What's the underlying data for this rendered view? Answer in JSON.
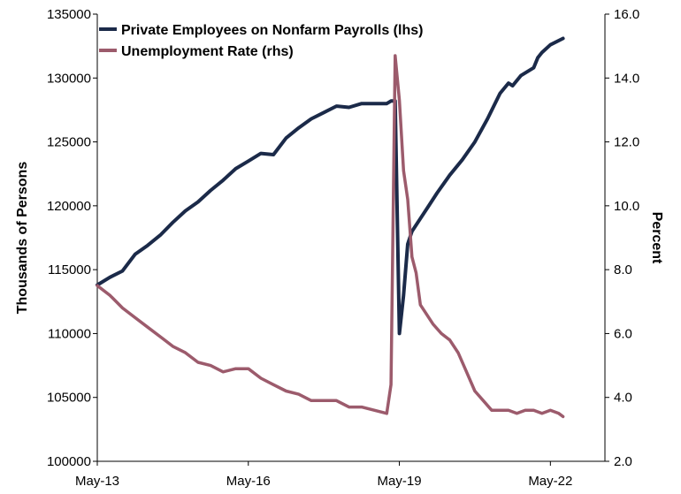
{
  "chart_data": {
    "type": "line",
    "x_tick_labels": [
      "May-13",
      "May-16",
      "May-19",
      "May-22"
    ],
    "y_left": {
      "label": "Thousands of Persons",
      "range": [
        100000,
        135000
      ],
      "ticks": [
        "100000",
        "105000",
        "110000",
        "115000",
        "120000",
        "125000",
        "130000",
        "135000"
      ]
    },
    "y_right": {
      "label": "Percent",
      "range": [
        2.0,
        16.0
      ],
      "ticks": [
        "2.0",
        "4.0",
        "6.0",
        "8.0",
        "10.0",
        "12.0",
        "14.0",
        "16.0"
      ]
    },
    "grid": false,
    "legend_position": "top-left",
    "x_range_months": [
      0,
      121
    ],
    "series": [
      {
        "name": "Private Employees on Nonfarm Payrolls (lhs)",
        "axis": "left",
        "color": "#1b2a49",
        "points": [
          [
            0,
            113800
          ],
          [
            3,
            114400
          ],
          [
            6,
            114900
          ],
          [
            9,
            116200
          ],
          [
            12,
            116900
          ],
          [
            15,
            117700
          ],
          [
            18,
            118700
          ],
          [
            21,
            119600
          ],
          [
            24,
            120300
          ],
          [
            27,
            121200
          ],
          [
            30,
            122000
          ],
          [
            33,
            122900
          ],
          [
            36,
            123500
          ],
          [
            39,
            124100
          ],
          [
            42,
            124000
          ],
          [
            45,
            125300
          ],
          [
            48,
            126100
          ],
          [
            51,
            126800
          ],
          [
            54,
            127300
          ],
          [
            57,
            127800
          ],
          [
            60,
            127700
          ],
          [
            63,
            128000
          ],
          [
            66,
            128000
          ],
          [
            69,
            128000
          ],
          [
            70,
            128200
          ],
          [
            71,
            128200
          ],
          [
            72,
            110000
          ],
          [
            73,
            113000
          ],
          [
            74,
            117000
          ],
          [
            75,
            118000
          ],
          [
            77,
            119000
          ],
          [
            79,
            120000
          ],
          [
            81,
            121000
          ],
          [
            84,
            122400
          ],
          [
            87,
            123600
          ],
          [
            90,
            125000
          ],
          [
            93,
            126800
          ],
          [
            96,
            128800
          ],
          [
            98,
            129600
          ],
          [
            99,
            129400
          ],
          [
            101,
            130200
          ],
          [
            104,
            130800
          ],
          [
            105,
            131600
          ],
          [
            106,
            132000
          ],
          [
            108,
            132600
          ],
          [
            111,
            133100
          ]
        ]
      },
      {
        "name": "Unemployment Rate (rhs)",
        "axis": "right",
        "color": "#9c5b6c",
        "points": [
          [
            0,
            7.5
          ],
          [
            3,
            7.2
          ],
          [
            6,
            6.8
          ],
          [
            9,
            6.5
          ],
          [
            12,
            6.2
          ],
          [
            15,
            5.9
          ],
          [
            18,
            5.6
          ],
          [
            21,
            5.4
          ],
          [
            24,
            5.1
          ],
          [
            27,
            5.0
          ],
          [
            30,
            4.8
          ],
          [
            33,
            4.9
          ],
          [
            36,
            4.9
          ],
          [
            39,
            4.6
          ],
          [
            42,
            4.4
          ],
          [
            45,
            4.2
          ],
          [
            48,
            4.1
          ],
          [
            51,
            3.9
          ],
          [
            54,
            3.9
          ],
          [
            57,
            3.9
          ],
          [
            60,
            3.7
          ],
          [
            63,
            3.7
          ],
          [
            66,
            3.6
          ],
          [
            69,
            3.5
          ],
          [
            70,
            4.4
          ],
          [
            71,
            14.7
          ],
          [
            72,
            13.3
          ],
          [
            73,
            11.1
          ],
          [
            74,
            10.2
          ],
          [
            75,
            8.4
          ],
          [
            76,
            7.9
          ],
          [
            77,
            6.9
          ],
          [
            78,
            6.7
          ],
          [
            80,
            6.3
          ],
          [
            82,
            6.0
          ],
          [
            84,
            5.8
          ],
          [
            86,
            5.4
          ],
          [
            88,
            4.8
          ],
          [
            90,
            4.2
          ],
          [
            92,
            3.9
          ],
          [
            94,
            3.6
          ],
          [
            96,
            3.6
          ],
          [
            98,
            3.6
          ],
          [
            100,
            3.5
          ],
          [
            102,
            3.6
          ],
          [
            104,
            3.6
          ],
          [
            106,
            3.5
          ],
          [
            108,
            3.6
          ],
          [
            110,
            3.5
          ],
          [
            111,
            3.4
          ]
        ]
      }
    ]
  }
}
